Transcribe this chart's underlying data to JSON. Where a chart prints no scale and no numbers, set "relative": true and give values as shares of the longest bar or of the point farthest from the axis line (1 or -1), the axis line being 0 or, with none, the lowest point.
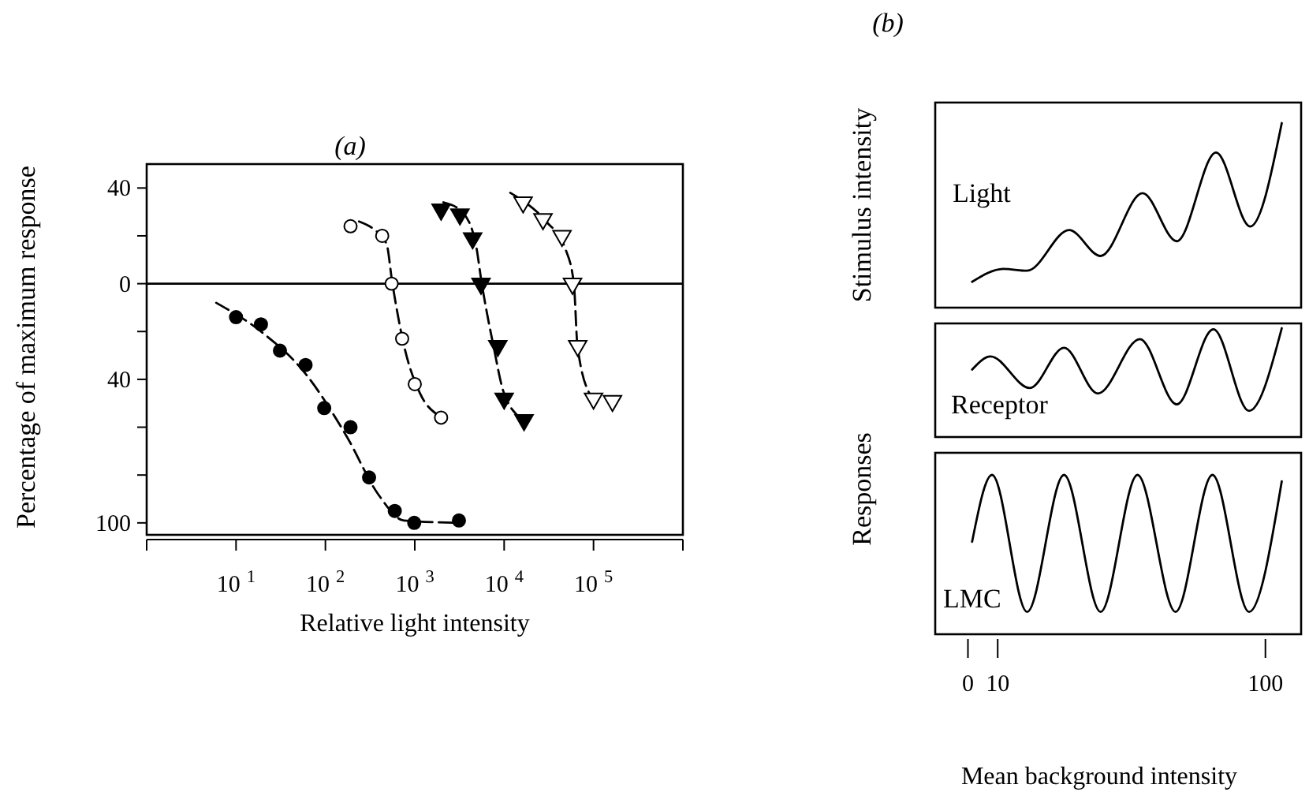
{
  "chart_data": [
    {
      "type": "scatter",
      "title": "(a)",
      "xlabel": "Relative light intensity",
      "ylabel": "Percentage of maximum response",
      "log": "x",
      "xlim": [
        1,
        1000000
      ],
      "xticks": [
        {
          "value": 1,
          "label": null
        },
        {
          "value": 10,
          "label": "10$^{1}$"
        },
        {
          "value": 100,
          "label": "10$^{2}$"
        },
        {
          "value": 1000,
          "label": "10$^{3}$"
        },
        {
          "value": 10000,
          "label": "10$^{4}$"
        },
        {
          "value": 100000,
          "label": "10$^{5}$"
        },
        {
          "value": 1000000,
          "label": null
        }
      ],
      "ylim": [
        -105,
        50
      ],
      "yticks": [
        40,
        {
          "value": 20,
          "label": null
        },
        0,
        {
          "value": -20,
          "label": null
        },
        {
          "value": -40,
          "label": "40"
        },
        {
          "value": -60,
          "label": null
        },
        {
          "value": -80,
          "label": null
        },
        {
          "value": -100,
          "label": "100"
        }
      ],
      "ref_lines": [
        {
          "axis": "y",
          "value": 0,
          "color": "#000000"
        }
      ],
      "series": [
        {
          "type": "line",
          "color": "#000000",
          "line_style": "dashed",
          "marker": "none",
          "x": [
            6,
            19,
            58,
            174,
            389,
            759,
            3100
          ],
          "values": [
            -8,
            -20,
            -37,
            -64,
            -88,
            -99,
            -100
          ]
        },
        {
          "type": "scatter",
          "color": "#000000",
          "marker": "circle",
          "x": [
            10,
            19,
            31,
            60,
            97,
            191,
            308,
            597,
            986,
            3120
          ],
          "values": [
            -14,
            -17,
            -28,
            -34,
            -52,
            -60,
            -81,
            -95,
            -100,
            -99
          ]
        },
        {
          "type": "line",
          "color": "#000000",
          "line_style": "dashed",
          "marker": "none",
          "x": [
            238,
            479,
            562,
            759,
            1150,
            1820
          ],
          "values": [
            26,
            17,
            0,
            -26,
            -46,
            -55
          ]
        },
        {
          "type": "scatter",
          "color": "#ffffff",
          "marker": "circle",
          "x": [
            191,
            432,
            551,
            722,
            1000,
            1970
          ],
          "values": [
            24,
            20,
            0,
            -23,
            -42,
            -56
          ]
        },
        {
          "type": "line",
          "color": "#000000",
          "line_style": "dashed",
          "marker": "none",
          "x": [
            2090,
            3390,
            4790,
            5620,
            7590,
            10000,
            16600
          ],
          "values": [
            34,
            30,
            17,
            0,
            -26,
            -46,
            -57
          ]
        },
        {
          "type": "scatter",
          "color": "#000000",
          "marker": "triangle",
          "x": [
            1970,
            3200,
            4440,
            5510,
            8490,
            10000,
            16700
          ],
          "values": [
            31,
            29,
            19,
            0,
            -26,
            -48,
            -57
          ]
        },
        {
          "type": "line",
          "color": "#000000",
          "line_style": "dashed",
          "marker": "none",
          "x": [
            11700,
            29500,
            47900,
            60300,
            66100,
            93300
          ],
          "values": [
            38,
            26,
            15,
            0,
            -26,
            -47
          ]
        },
        {
          "type": "scatter",
          "color": "#ffffff",
          "marker": "triangle",
          "x": [
            16300,
            27200,
            44400,
            58200,
            66600,
            100000,
            163000
          ],
          "values": [
            34,
            27,
            20,
            0,
            -26,
            -48,
            -49
          ]
        }
      ]
    },
    {
      "type": "line",
      "title": "(b)",
      "ylabel": "Stimulus intensity",
      "relative": true,
      "xlim": [
        -11,
        112
      ],
      "series": [
        {
          "name": "Light",
          "color": "#000000",
          "x": [
            1.4,
            12.0,
            19.9,
            34.0,
            44.6,
            58.7,
            70.2,
            83.4,
            94.9,
            105.5
          ],
          "values": [
            0.14,
            0.21,
            0.2,
            0.42,
            0.28,
            0.62,
            0.36,
            0.84,
            0.44,
            1
          ]
        }
      ]
    },
    {
      "type": "line",
      "relative": true,
      "xlim": [
        -11,
        112
      ],
      "series": [
        {
          "name": "Receptor",
          "color": "#000000",
          "x": [
            1.4,
            7.6,
            20.8,
            32.3,
            43.7,
            57.8,
            70.2,
            82.5,
            94.5,
            105.5
          ],
          "values": [
            0.62,
            0.74,
            0.45,
            0.82,
            0.4,
            0.9,
            0.3,
            0.99,
            0.24,
            1
          ]
        }
      ]
    },
    {
      "type": "line",
      "ylabel": "Responses",
      "xlabel": "Mean background intensity",
      "relative": true,
      "xlim": [
        -11,
        112
      ],
      "xticks": [
        0,
        10,
        100
      ],
      "series": [
        {
          "name": "LMC",
          "color": "#000000",
          "x": [
            1.4,
            8.1,
            19.9,
            32.3,
            44.6,
            57.0,
            69.8,
            82.2,
            94.5,
            105.5
          ],
          "values": [
            0.58,
            1,
            0.14,
            1,
            0.14,
            1,
            0.14,
            1,
            0.14,
            0.96
          ]
        }
      ]
    }
  ]
}
